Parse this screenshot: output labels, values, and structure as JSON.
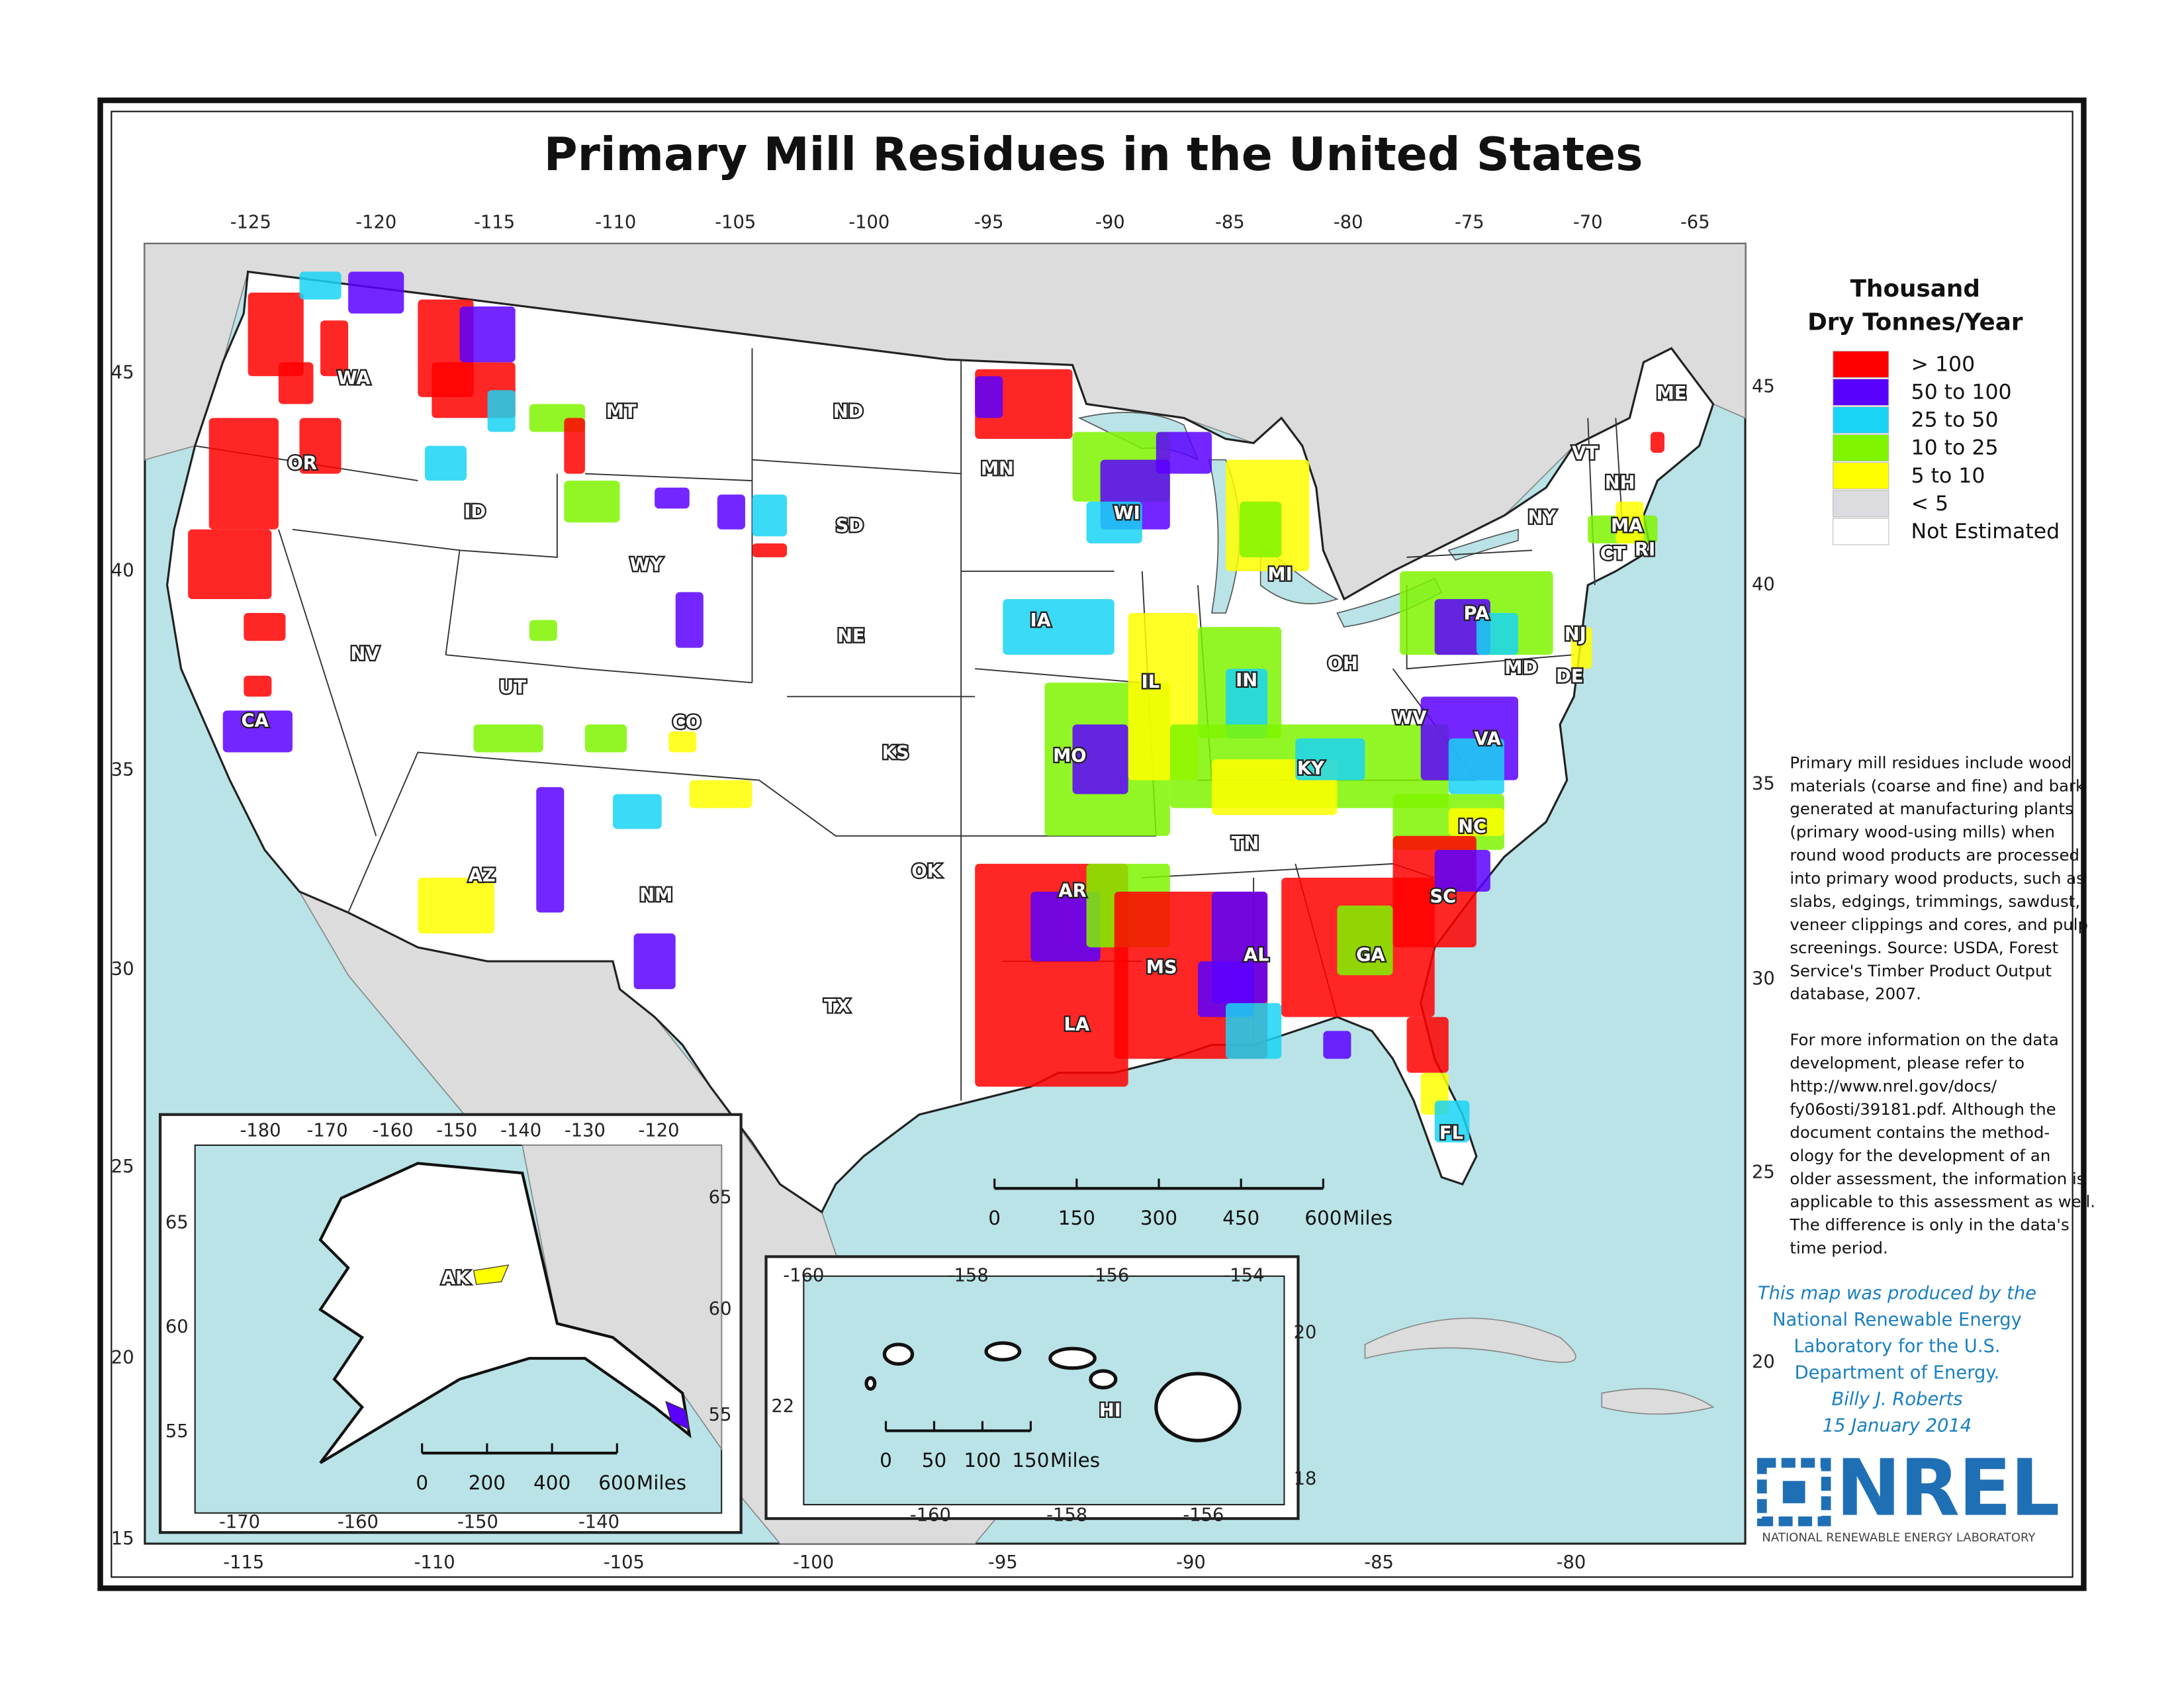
{
  "title": "Primary Mill Residues in the United States",
  "legend": {
    "title": [
      "Thousand",
      "Dry Tonnes/Year"
    ],
    "items": [
      {
        "label": "> 100",
        "color": "#ff0000"
      },
      {
        "label": "50 to 100",
        "color": "#5a00ff"
      },
      {
        "label": "25 to 50",
        "color": "#19d4f5"
      },
      {
        "label": "10 to 25",
        "color": "#7ff500"
      },
      {
        "label": "5 to 10",
        "color": "#ffff00"
      },
      {
        "label": "< 5",
        "color": "#dcdce0"
      },
      {
        "label": "Not Estimated",
        "color": "#ffffff"
      }
    ]
  },
  "note": {
    "paragraph_1": [
      "Primary mill residues include wood",
      "materials (coarse and fine) and bark",
      "generated at manufacturing plants",
      "(primary wood-using mills) when",
      "round wood products are processed",
      "into primary wood products, such as",
      "slabs, edgings, trimmings, sawdust,",
      "veneer clippings and cores, and pulp",
      "screenings. Source: USDA, Forest",
      "Service's Timber Product Output",
      "database, 2007."
    ],
    "paragraph_2": [
      "For more information on the data",
      "development, please refer to",
      "http://www.nrel.gov/docs/",
      "fy06osti/39181.pdf.  Although the",
      "document contains the method-",
      "ology for the development of an",
      "older assessment, the information is",
      "applicable to this assessment as well.",
      "The difference is only in the data's",
      "time period."
    ]
  },
  "credit": [
    "This map was produced by the",
    "National Renewable Energy",
    "Laboratory for the U.S.",
    "Department of Energy.",
    "Billy J. Roberts",
    "15 January 2014"
  ],
  "logo": {
    "name": "NREL",
    "subtitle": "NATIONAL RENEWABLE ENERGY LABORATORY"
  },
  "main_map": {
    "top_labels": [
      -125,
      -120,
      -115,
      -110,
      -105,
      -100,
      -95,
      -90,
      -85,
      -80,
      -75,
      -70,
      -65
    ],
    "left_labels": [
      45,
      40,
      35,
      30,
      25,
      20,
      15
    ],
    "right_labels": [
      45,
      40,
      35,
      30,
      25,
      20
    ],
    "bottom_labels": [
      -115,
      -110,
      -105,
      -100,
      -95,
      -90,
      -85,
      -80
    ],
    "state_labels": [
      "WA",
      "OR",
      "CA",
      "NV",
      "ID",
      "MT",
      "WY",
      "UT",
      "CO",
      "AZ",
      "NM",
      "ND",
      "SD",
      "NE",
      "KS",
      "OK",
      "TX",
      "MN",
      "IA",
      "MO",
      "AR",
      "LA",
      "WI",
      "IL",
      "MS",
      "MI",
      "IN",
      "KY",
      "TN",
      "AL",
      "OH",
      "GA",
      "FL",
      "SC",
      "NC",
      "VA",
      "WV",
      "PA",
      "NY",
      "ME",
      "VT",
      "NH",
      "MA",
      "CT",
      "RI",
      "NJ",
      "DE",
      "MD"
    ],
    "scale": {
      "ticks": [
        0,
        150,
        300,
        450,
        600
      ],
      "unit": "Miles"
    }
  },
  "alaska_inset": {
    "top_labels": [
      -180,
      -170,
      -160,
      -150,
      -140,
      -130,
      -120
    ],
    "left_labels": [
      65,
      60,
      55
    ],
    "right_labels": [
      65,
      60,
      55
    ],
    "bottom_labels": [
      -170,
      -160,
      -150,
      -140
    ],
    "state_label": "AK",
    "scale": {
      "ticks": [
        0,
        200,
        400,
        600
      ],
      "unit": "Miles"
    }
  },
  "hawaii_inset": {
    "top_labels": [
      -160,
      -158,
      -156,
      -154
    ],
    "bottom_labels": [
      -160,
      -158,
      -156
    ],
    "right_labels": [
      20,
      18
    ],
    "left_labels": [
      22
    ],
    "state_label": "HI",
    "scale": {
      "ticks": [
        0,
        50,
        100,
        150
      ],
      "unit": "Miles"
    }
  }
}
